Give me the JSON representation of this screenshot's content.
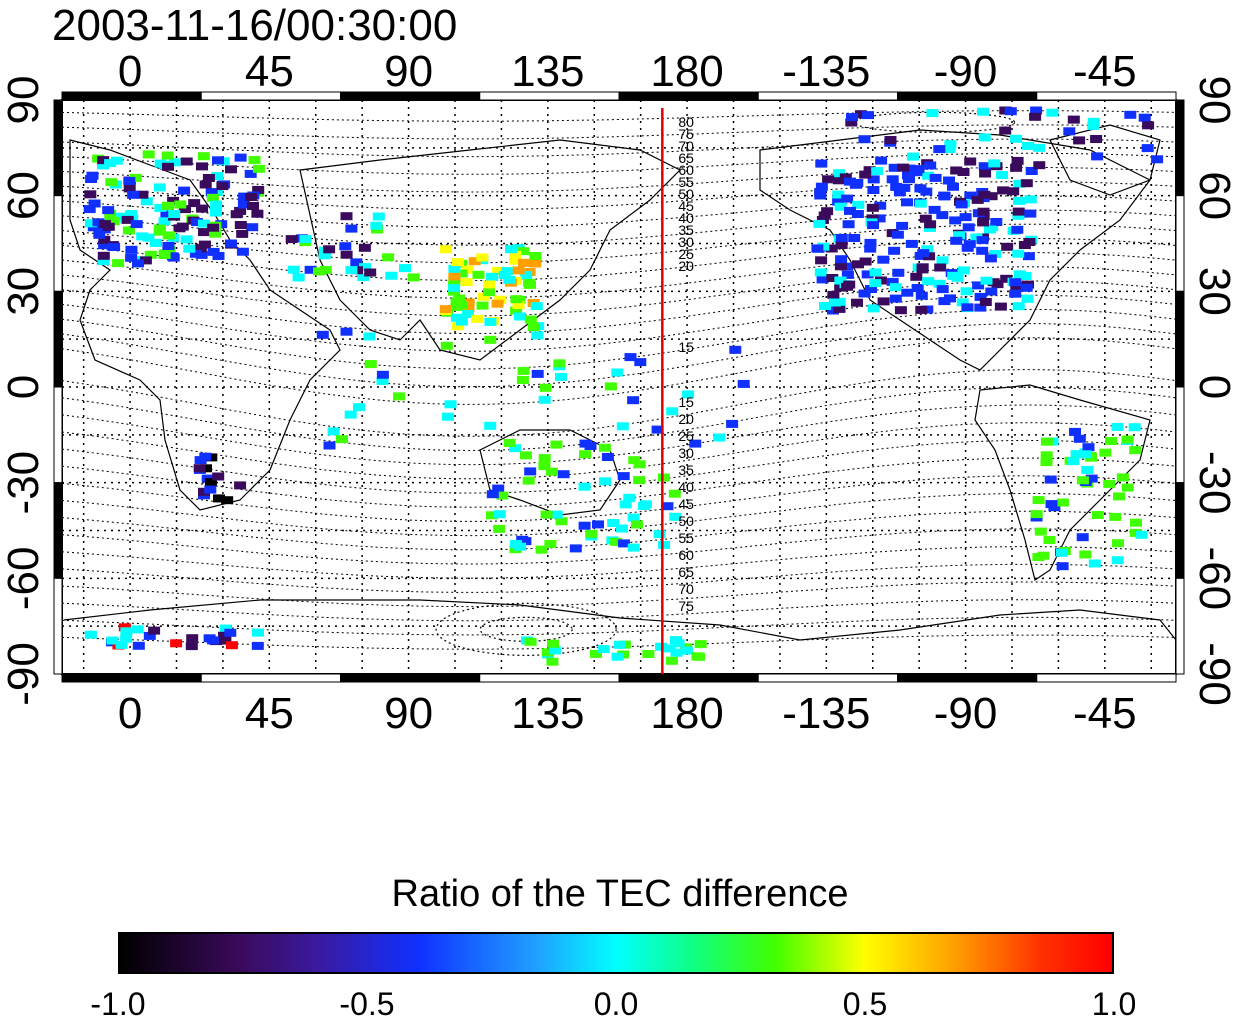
{
  "header": {
    "timestamp": "2003-11-16/00:30:00"
  },
  "map": {
    "x_ticks_top": [
      "0",
      "45",
      "90",
      "135",
      "180",
      "-135",
      "-90",
      "-45"
    ],
    "x_ticks_bottom": [
      "0",
      "45",
      "90",
      "135",
      "180",
      "-135",
      "-90",
      "-45"
    ],
    "y_ticks_left": [
      "90",
      "60",
      "30",
      "0",
      "-30",
      "-60",
      "-90"
    ],
    "y_ticks_right": [
      "90",
      "60",
      "30",
      "0",
      "-30",
      "-60",
      "-90"
    ],
    "marker_line_longitude": 172,
    "marker_line_color": "#e00000",
    "north_contour_labels": [
      "80",
      "75",
      "70",
      "65",
      "60",
      "55",
      "50",
      "45",
      "40",
      "35",
      "30",
      "25",
      "20",
      "15"
    ],
    "south_contour_labels": [
      "15",
      "20",
      "25",
      "30",
      "35",
      "40",
      "45",
      "50",
      "55",
      "60",
      "65",
      "70",
      "75"
    ]
  },
  "colorbar": {
    "title": "Ratio of the TEC difference",
    "tick_labels": [
      "-1.0",
      "-0.5",
      "0.0",
      "0.5",
      "1.0"
    ],
    "min": -1.0,
    "max": 1.0,
    "palette": [
      "#000000",
      "#3a0a5c",
      "#1030ff",
      "#00ffff",
      "#40ff00",
      "#ffff00",
      "#ffa000",
      "#ff0000"
    ]
  }
}
